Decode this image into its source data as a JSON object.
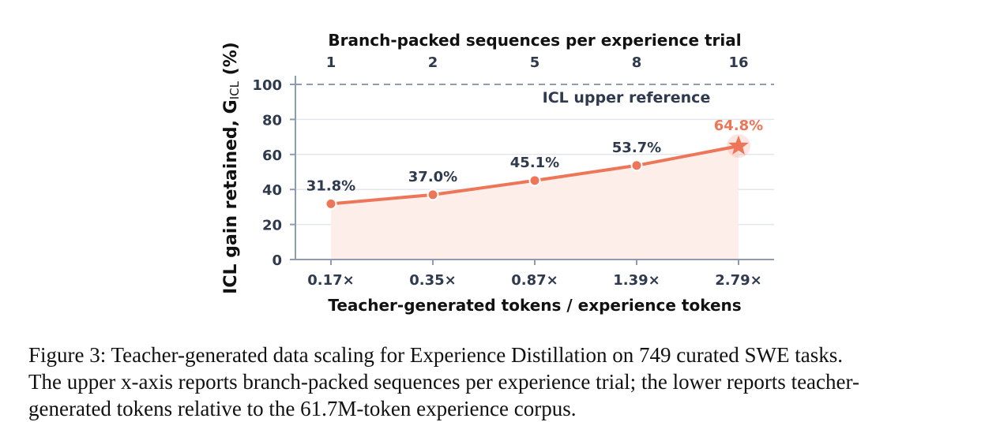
{
  "chart_data": {
    "type": "line",
    "x": [
      1,
      2,
      3,
      4,
      5
    ],
    "top_axis": {
      "label": "Branch-packed sequences per experience trial",
      "tick_labels": [
        "1",
        "2",
        "5",
        "8",
        "16"
      ]
    },
    "bottom_axis": {
      "label": "Teacher-generated tokens / experience tokens",
      "tick_labels": [
        "0.17×",
        "0.35×",
        "0.87×",
        "1.39×",
        "2.79×"
      ]
    },
    "y_axis": {
      "label_main": "ICL gain retained, G",
      "label_sub": "ICL",
      "label_unit": " (%)",
      "ylim": [
        0,
        100
      ],
      "ticks": [
        0,
        20,
        40,
        60,
        80,
        100
      ]
    },
    "series": [
      {
        "values": [
          31.8,
          37.0,
          45.1,
          53.7,
          64.8
        ],
        "data_labels": [
          "31.8%",
          "37.0%",
          "45.1%",
          "53.7%",
          "64.8%"
        ],
        "color": "#ee7658",
        "fill": "#fdeeea",
        "last_marker": "star"
      }
    ],
    "reference_line": {
      "value": 100,
      "label": "ICL upper reference",
      "color": "#8f9bb0",
      "style": "dashed"
    },
    "grid": true,
    "text_color": "#2f3a4f",
    "highlight_label_color": "#ee7658",
    "grid_color": "#e3e6ee",
    "axis_color": "#8f9bb0"
  },
  "caption": {
    "line1": "Figure 3:  Teacher-generated data scaling for Experience Distillation on 749 curated SWE tasks.",
    "line2": "The upper x-axis reports branch-packed sequences per experience trial; the lower reports teacher-",
    "line3": "generated tokens relative to the 61.7M-token experience corpus."
  }
}
